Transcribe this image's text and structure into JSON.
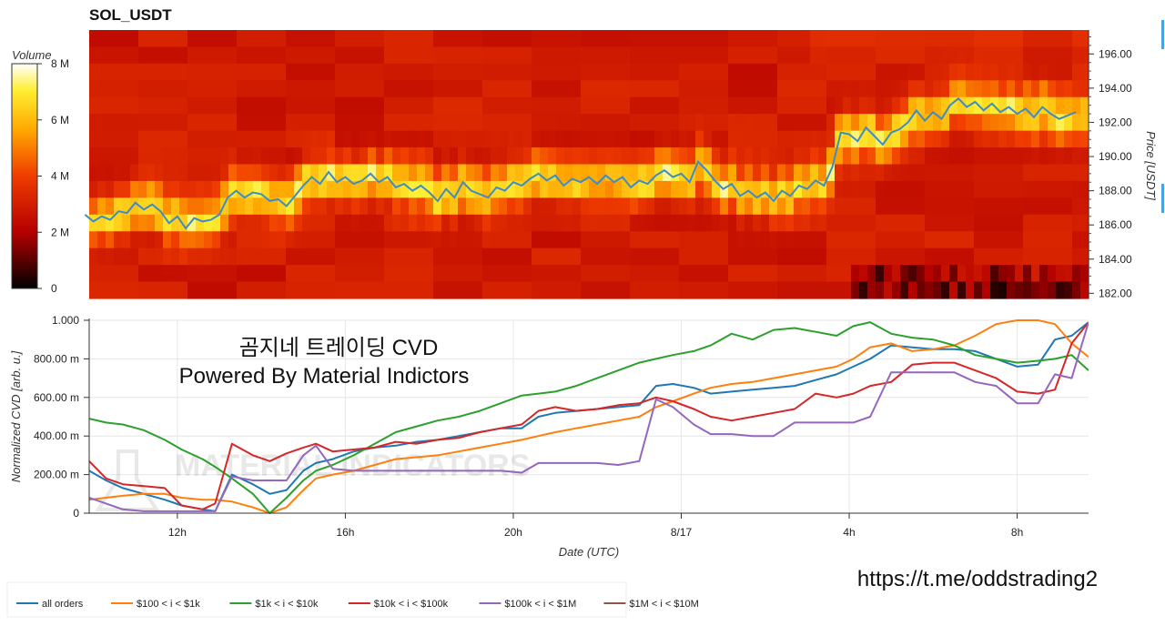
{
  "header": {
    "title": "SOL_USDT"
  },
  "colorbar": {
    "label": "Volume",
    "ticks": [
      "8 M",
      "6 M",
      "4 M",
      "2 M",
      "0"
    ],
    "range": [
      0,
      8
    ]
  },
  "overlay": {
    "line1": "곰지네 트레이딩 CVD",
    "line2": "Powered By Material Indictors",
    "link": "https://t.me/oddstrading2",
    "watermark": "MATERIAL INDICATORS"
  },
  "colors": {
    "all_orders": "#1f77b4",
    "s100_1k": "#ff7f0e",
    "s1k_10k": "#2ca02c",
    "s10k_100k": "#d62728",
    "s100k_1m": "#9467bd",
    "s1m_10m": "#8c564b"
  },
  "chart_data": [
    {
      "type": "heatmap",
      "title": "SOL_USDT",
      "ylabel": "Price [USDT]",
      "yticks": [
        "196.00",
        "194.00",
        "192.00",
        "190.00",
        "188.00",
        "186.00",
        "184.00",
        "182.00"
      ],
      "ylim": [
        181.7,
        197.4
      ],
      "x_hours": [
        9.8,
        9.9,
        10.0,
        10.2,
        10.4,
        10.6,
        10.8,
        11.0,
        11.2,
        11.4,
        11.6,
        11.8,
        12.0,
        12.2,
        12.4,
        12.6,
        12.8,
        13.0,
        13.2,
        13.4,
        13.6,
        13.8,
        14.0,
        14.2,
        14.4,
        14.6,
        14.8,
        15.0,
        15.2,
        15.4,
        15.6,
        15.8,
        16.0,
        16.2,
        16.4,
        16.6,
        16.8,
        17.0,
        17.2,
        17.4,
        17.6,
        17.8,
        18.0,
        18.2,
        18.4,
        18.6,
        18.8,
        19.0,
        19.2,
        19.4,
        19.6,
        19.8,
        20.0,
        20.2,
        20.4,
        20.6,
        20.8,
        21.0,
        21.2,
        21.4,
        21.6,
        21.8,
        22.0,
        22.2,
        22.4,
        22.6,
        22.8,
        23.0,
        23.2,
        23.4,
        23.6,
        23.8,
        24.0,
        24.2,
        24.4,
        24.6,
        24.8,
        25.0,
        25.2,
        25.4,
        25.6,
        25.8,
        26.0,
        26.2,
        26.4,
        26.6,
        26.8,
        27.0,
        27.2,
        27.4,
        27.6,
        27.8,
        28.0,
        28.2,
        28.4,
        28.6,
        28.8,
        29.0,
        29.2,
        29.4,
        29.6,
        29.8,
        30.0,
        30.2,
        30.4,
        30.6,
        30.8,
        31.0,
        31.2,
        31.4,
        31.6,
        31.8,
        32.0,
        32.2,
        32.4,
        32.6,
        32.8,
        33.0,
        33.4
      ],
      "price_series": [
        186.6,
        186.4,
        186.2,
        186.5,
        186.3,
        186.8,
        186.7,
        187.3,
        186.9,
        187.2,
        186.8,
        186.1,
        186.5,
        185.8,
        186.4,
        186.2,
        186.3,
        186.6,
        187.6,
        188.0,
        187.6,
        187.9,
        187.8,
        187.4,
        187.5,
        187.1,
        187.7,
        188.3,
        188.8,
        188.4,
        189.1,
        188.5,
        188.8,
        188.4,
        188.6,
        189.0,
        188.5,
        188.8,
        188.2,
        188.4,
        188.0,
        188.3,
        187.9,
        187.4,
        188.1,
        187.6,
        188.5,
        188.0,
        187.8,
        187.6,
        188.2,
        188.0,
        188.5,
        188.3,
        188.7,
        189.0,
        188.6,
        188.9,
        188.3,
        188.7,
        188.5,
        188.8,
        188.4,
        188.9,
        188.5,
        188.8,
        188.2,
        188.6,
        188.4,
        188.9,
        189.2,
        188.8,
        189.0,
        188.5,
        189.7,
        189.2,
        188.6,
        188.1,
        188.4,
        187.7,
        188.0,
        187.6,
        187.9,
        187.4,
        188.0,
        187.7,
        188.3,
        188.1,
        188.6,
        188.3,
        189.4,
        191.4,
        191.3,
        190.9,
        191.7,
        191.2,
        190.7,
        191.4,
        191.6,
        192.0,
        192.7,
        192.1,
        192.6,
        192.2,
        193.0,
        193.4,
        192.9,
        193.2,
        192.7,
        193.1,
        192.6,
        192.9,
        192.5,
        192.8,
        192.3,
        192.9,
        192.5,
        192.2,
        192.6
      ],
      "price_range": [
        181.7,
        197.4
      ]
    },
    {
      "type": "line",
      "xlabel": "Date (UTC)",
      "ylabel": "Normalized CVD [arb. u.]",
      "xticks": [
        "12h",
        "16h",
        "20h",
        "8/17",
        "4h",
        "8h"
      ],
      "xtick_hours": [
        12,
        16,
        20,
        24,
        28,
        32
      ],
      "xlim": [
        9.9,
        33.7
      ],
      "yticks": [
        "1.000",
        "800.00 m",
        "600.00 m",
        "400.00 m",
        "200.00 m",
        "0"
      ],
      "ylim": [
        0,
        1
      ],
      "series": [
        {
          "name": "all orders",
          "x": [
            9.9,
            10.3,
            10.7,
            11.2,
            11.7,
            12.1,
            12.6,
            12.9,
            13.3,
            13.8,
            14.2,
            14.6,
            15.0,
            15.3,
            15.7,
            16.2,
            16.7,
            17.2,
            17.7,
            18.2,
            18.7,
            19.2,
            19.7,
            20.2,
            20.6,
            21.0,
            21.5,
            22.0,
            22.5,
            23.0,
            23.4,
            23.8,
            24.3,
            24.7,
            25.2,
            25.7,
            26.2,
            26.7,
            27.2,
            27.7,
            28.1,
            28.5,
            29.0,
            29.5,
            30.0,
            30.5,
            31.0,
            31.5,
            32.0,
            32.5,
            32.9,
            33.3,
            33.7
          ],
          "y": [
            0.22,
            0.17,
            0.13,
            0.1,
            0.07,
            0.04,
            0.02,
            0.01,
            0.2,
            0.15,
            0.1,
            0.12,
            0.22,
            0.26,
            0.28,
            0.32,
            0.34,
            0.35,
            0.37,
            0.38,
            0.4,
            0.42,
            0.44,
            0.44,
            0.5,
            0.52,
            0.53,
            0.54,
            0.55,
            0.56,
            0.66,
            0.67,
            0.65,
            0.62,
            0.63,
            0.64,
            0.65,
            0.66,
            0.69,
            0.72,
            0.76,
            0.8,
            0.87,
            0.86,
            0.85,
            0.85,
            0.84,
            0.8,
            0.76,
            0.77,
            0.9,
            0.92,
            0.99
          ]
        },
        {
          "name": "$100 < i < $1k",
          "x": [
            9.9,
            10.3,
            10.7,
            11.2,
            11.7,
            12.1,
            12.6,
            12.9,
            13.3,
            13.8,
            14.2,
            14.6,
            15.0,
            15.3,
            15.7,
            16.2,
            16.7,
            17.2,
            17.7,
            18.2,
            18.7,
            19.2,
            19.7,
            20.2,
            20.6,
            21.0,
            21.5,
            22.0,
            22.5,
            23.0,
            23.4,
            23.8,
            24.3,
            24.7,
            25.2,
            25.7,
            26.2,
            26.7,
            27.2,
            27.7,
            28.1,
            28.5,
            29.0,
            29.5,
            30.0,
            30.5,
            31.0,
            31.5,
            32.0,
            32.5,
            32.9,
            33.3,
            33.7
          ],
          "y": [
            0.07,
            0.08,
            0.09,
            0.1,
            0.1,
            0.08,
            0.07,
            0.07,
            0.06,
            0.03,
            0.0,
            0.03,
            0.12,
            0.18,
            0.2,
            0.22,
            0.25,
            0.28,
            0.29,
            0.3,
            0.32,
            0.34,
            0.36,
            0.38,
            0.4,
            0.42,
            0.44,
            0.46,
            0.48,
            0.5,
            0.55,
            0.58,
            0.62,
            0.65,
            0.67,
            0.68,
            0.7,
            0.72,
            0.74,
            0.76,
            0.8,
            0.86,
            0.88,
            0.84,
            0.85,
            0.87,
            0.92,
            0.98,
            1.0,
            1.0,
            0.98,
            0.88,
            0.81
          ]
        },
        {
          "name": "$1k < i < $10k",
          "x": [
            9.9,
            10.3,
            10.7,
            11.2,
            11.7,
            12.1,
            12.6,
            12.9,
            13.3,
            13.8,
            14.2,
            14.6,
            15.0,
            15.3,
            15.7,
            16.2,
            16.7,
            17.2,
            17.7,
            18.2,
            18.7,
            19.2,
            19.7,
            20.2,
            20.6,
            21.0,
            21.5,
            22.0,
            22.5,
            23.0,
            23.4,
            23.8,
            24.3,
            24.7,
            25.2,
            25.7,
            26.2,
            26.7,
            27.2,
            27.7,
            28.1,
            28.5,
            29.0,
            29.5,
            30.0,
            30.5,
            31.0,
            31.5,
            32.0,
            32.5,
            32.9,
            33.3,
            33.7
          ],
          "y": [
            0.49,
            0.47,
            0.46,
            0.43,
            0.38,
            0.33,
            0.28,
            0.24,
            0.18,
            0.1,
            0.0,
            0.08,
            0.17,
            0.22,
            0.25,
            0.3,
            0.36,
            0.42,
            0.45,
            0.48,
            0.5,
            0.53,
            0.57,
            0.61,
            0.62,
            0.63,
            0.66,
            0.7,
            0.74,
            0.78,
            0.8,
            0.82,
            0.84,
            0.87,
            0.93,
            0.9,
            0.95,
            0.96,
            0.94,
            0.92,
            0.97,
            0.99,
            0.93,
            0.91,
            0.9,
            0.87,
            0.82,
            0.8,
            0.78,
            0.79,
            0.8,
            0.82,
            0.74
          ]
        },
        {
          "name": "$10k < i < $100k",
          "x": [
            9.9,
            10.3,
            10.7,
            11.2,
            11.7,
            12.1,
            12.6,
            12.9,
            13.3,
            13.8,
            14.2,
            14.6,
            15.0,
            15.3,
            15.7,
            16.2,
            16.7,
            17.2,
            17.7,
            18.2,
            18.7,
            19.2,
            19.7,
            20.2,
            20.6,
            21.0,
            21.5,
            22.0,
            22.5,
            23.0,
            23.4,
            23.8,
            24.3,
            24.7,
            25.2,
            25.7,
            26.2,
            26.7,
            27.2,
            27.7,
            28.1,
            28.5,
            29.0,
            29.5,
            30.0,
            30.5,
            31.0,
            31.5,
            32.0,
            32.5,
            32.9,
            33.3,
            33.7
          ],
          "y": [
            0.27,
            0.18,
            0.15,
            0.14,
            0.13,
            0.04,
            0.02,
            0.05,
            0.36,
            0.3,
            0.27,
            0.31,
            0.34,
            0.36,
            0.32,
            0.33,
            0.34,
            0.37,
            0.36,
            0.38,
            0.39,
            0.42,
            0.44,
            0.46,
            0.53,
            0.55,
            0.53,
            0.54,
            0.56,
            0.57,
            0.6,
            0.58,
            0.54,
            0.5,
            0.48,
            0.5,
            0.52,
            0.54,
            0.62,
            0.6,
            0.62,
            0.66,
            0.68,
            0.77,
            0.78,
            0.78,
            0.74,
            0.7,
            0.63,
            0.62,
            0.64,
            0.88,
            0.99
          ]
        },
        {
          "name": "$100k < i < $1M",
          "x": [
            9.9,
            10.3,
            10.7,
            11.2,
            11.7,
            12.1,
            12.6,
            12.9,
            13.3,
            13.8,
            14.2,
            14.6,
            15.0,
            15.3,
            15.7,
            16.2,
            16.7,
            17.2,
            17.7,
            18.2,
            18.7,
            19.2,
            19.7,
            20.2,
            20.6,
            21.0,
            21.5,
            22.0,
            22.5,
            23.0,
            23.4,
            23.8,
            24.3,
            24.7,
            25.2,
            25.7,
            26.2,
            26.7,
            27.2,
            27.7,
            28.1,
            28.5,
            29.0,
            29.5,
            30.0,
            30.5,
            31.0,
            31.5,
            32.0,
            32.5,
            32.9,
            33.3,
            33.7
          ],
          "y": [
            0.08,
            0.05,
            0.02,
            0.01,
            0.01,
            0.01,
            0.01,
            0.01,
            0.19,
            0.17,
            0.17,
            0.17,
            0.3,
            0.35,
            0.23,
            0.22,
            0.22,
            0.22,
            0.22,
            0.22,
            0.22,
            0.22,
            0.22,
            0.21,
            0.26,
            0.26,
            0.26,
            0.26,
            0.25,
            0.27,
            0.59,
            0.55,
            0.46,
            0.41,
            0.41,
            0.4,
            0.4,
            0.47,
            0.47,
            0.47,
            0.47,
            0.5,
            0.73,
            0.73,
            0.73,
            0.73,
            0.68,
            0.66,
            0.57,
            0.57,
            0.72,
            0.7,
            0.99
          ]
        }
      ],
      "legend": [
        "all orders",
        "$100 < i < $1k",
        "$1k < i < $10k",
        "$10k < i < $100k",
        "$100k < i < $1M",
        "$1M < i < $10M"
      ],
      "legend_position": "bottom-left"
    }
  ]
}
